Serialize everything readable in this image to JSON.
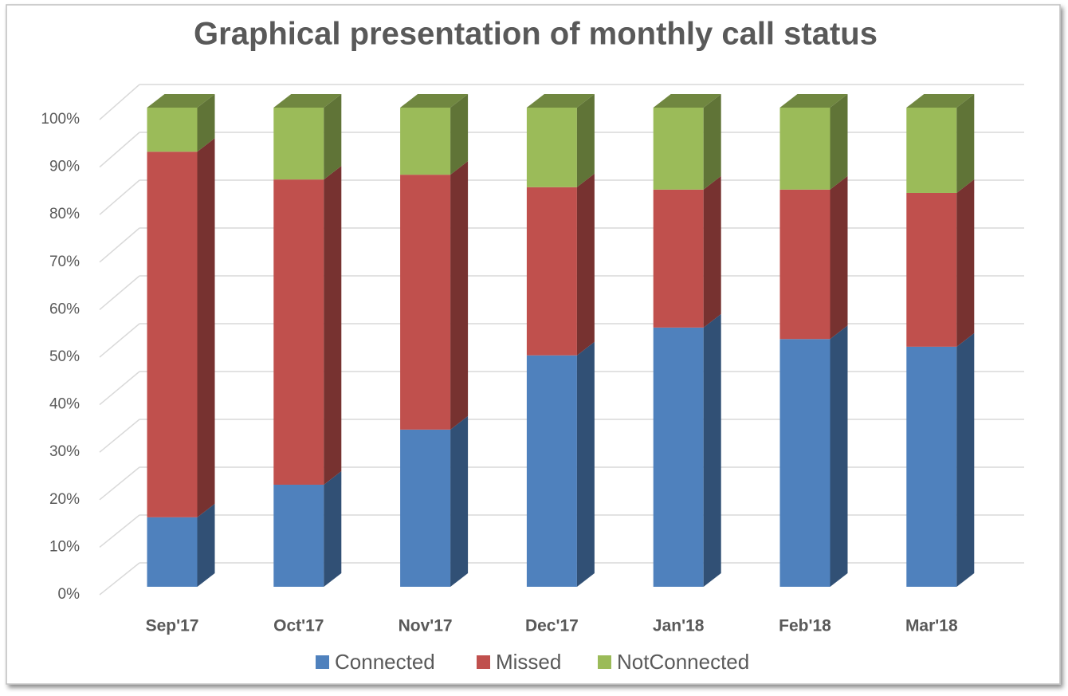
{
  "chart_data": {
    "type": "bar3d-stacked-percent",
    "title": "Graphical presentation of monthly call status",
    "categories": [
      "Sep'17",
      "Oct'17",
      "Nov'17",
      "Dec'17",
      "Jan'18",
      "Feb'18",
      "Mar'18"
    ],
    "series": [
      {
        "name": "Connected",
        "color": "#4f81bd",
        "values": [
          14.5,
          21.3,
          32.8,
          48.3,
          54.1,
          51.7,
          50.1
        ]
      },
      {
        "name": "Missed",
        "color": "#c0504d",
        "values": [
          76.3,
          63.7,
          53.2,
          35.1,
          28.8,
          31.2,
          32.1
        ]
      },
      {
        "name": "NotConnected",
        "color": "#9bbb59",
        "values": [
          9.2,
          15.0,
          14.0,
          16.6,
          17.1,
          17.1,
          17.8
        ]
      }
    ],
    "ylim": [
      0,
      100
    ],
    "yticks": [
      {
        "value": 0,
        "label": "0%"
      },
      {
        "value": 10,
        "label": "10%"
      },
      {
        "value": 20,
        "label": "20%"
      },
      {
        "value": 30,
        "label": "30%"
      },
      {
        "value": 40,
        "label": "40%"
      },
      {
        "value": 50,
        "label": "50%"
      },
      {
        "value": 60,
        "label": "60%"
      },
      {
        "value": 70,
        "label": "70%"
      },
      {
        "value": 80,
        "label": "80%"
      },
      {
        "value": 90,
        "label": "90%"
      },
      {
        "value": 100,
        "label": "100%"
      }
    ],
    "grid": true,
    "legend": "bottom"
  }
}
